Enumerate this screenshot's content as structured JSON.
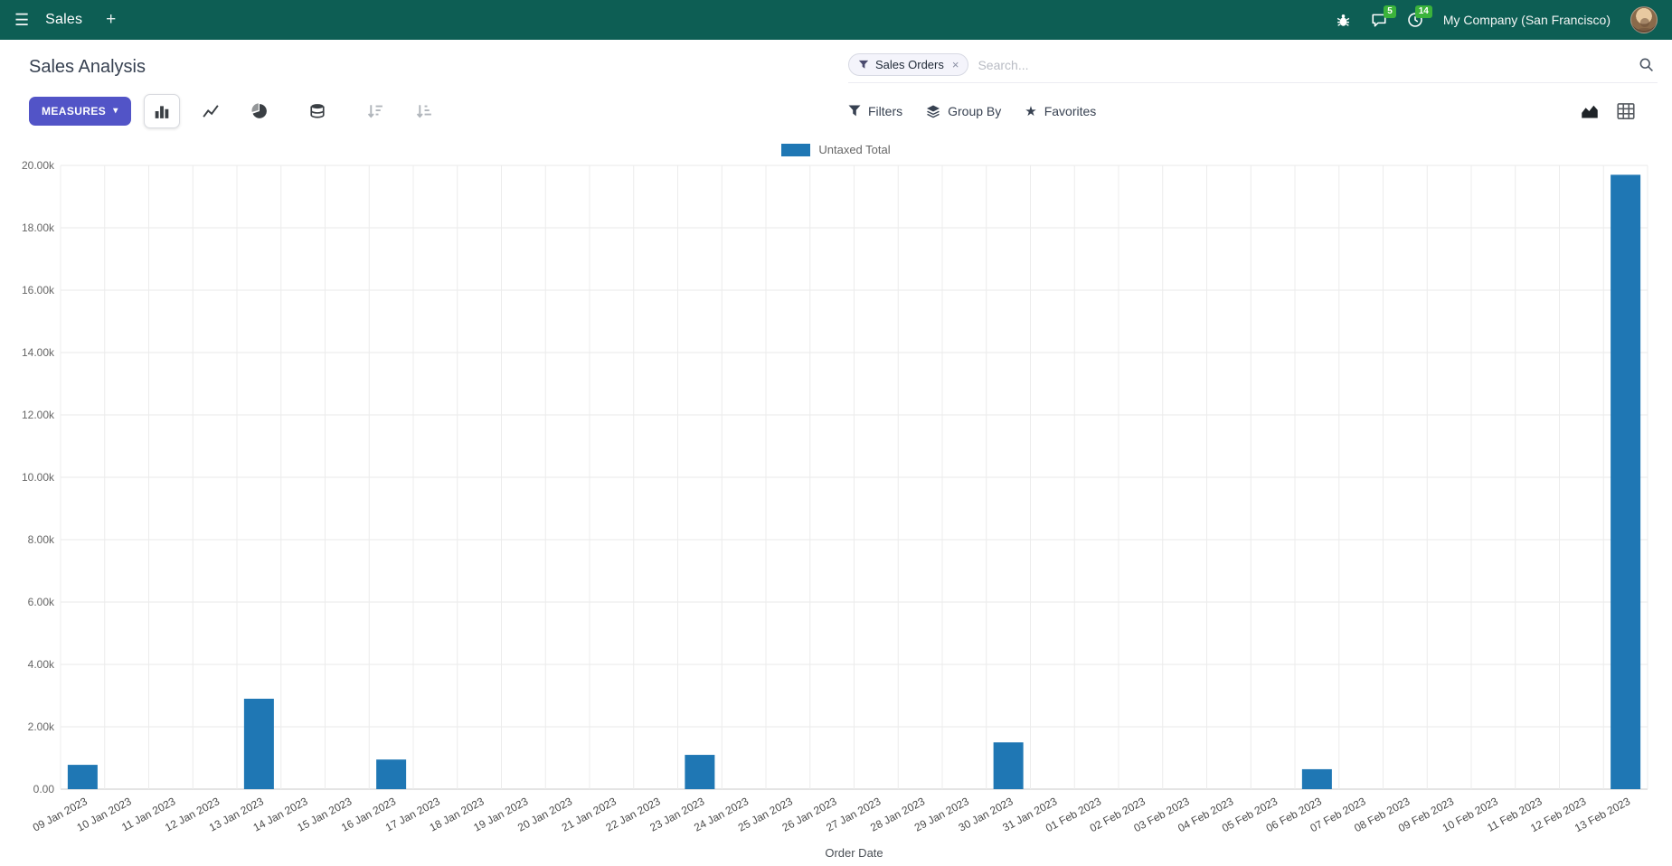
{
  "navbar": {
    "app_name": "Sales",
    "company": "My Company (San Francisco)",
    "badges": {
      "messages": "5",
      "activities": "14"
    }
  },
  "control_panel": {
    "title": "Sales Analysis",
    "measures_button": "MEASURES",
    "search": {
      "facet_label": "Sales Orders",
      "placeholder": "Search..."
    },
    "filters_label": "Filters",
    "group_by_label": "Group By",
    "favorites_label": "Favorites"
  },
  "icons": {
    "menu": "☰",
    "plus": "+",
    "caret_down": "▾",
    "remove": "×",
    "star": "★"
  },
  "chart_data": {
    "type": "bar",
    "title": "",
    "xlabel": "Order Date",
    "ylabel": "",
    "ylim": [
      0,
      20000
    ],
    "y_tick_step": 2000,
    "y_tick_labels": [
      "0.00",
      "2.00k",
      "4.00k",
      "6.00k",
      "8.00k",
      "10.00k",
      "12.00k",
      "14.00k",
      "16.00k",
      "18.00k",
      "20.00k"
    ],
    "grid": true,
    "legend_position": "top",
    "categories": [
      "09 Jan 2023",
      "10 Jan 2023",
      "11 Jan 2023",
      "12 Jan 2023",
      "13 Jan 2023",
      "14 Jan 2023",
      "15 Jan 2023",
      "16 Jan 2023",
      "17 Jan 2023",
      "18 Jan 2023",
      "19 Jan 2023",
      "20 Jan 2023",
      "21 Jan 2023",
      "22 Jan 2023",
      "23 Jan 2023",
      "24 Jan 2023",
      "25 Jan 2023",
      "26 Jan 2023",
      "27 Jan 2023",
      "28 Jan 2023",
      "29 Jan 2023",
      "30 Jan 2023",
      "31 Jan 2023",
      "01 Feb 2023",
      "02 Feb 2023",
      "03 Feb 2023",
      "04 Feb 2023",
      "05 Feb 2023",
      "06 Feb 2023",
      "07 Feb 2023",
      "08 Feb 2023",
      "09 Feb 2023",
      "10 Feb 2023",
      "11 Feb 2023",
      "12 Feb 2023",
      "13 Feb 2023"
    ],
    "series": [
      {
        "name": "Untaxed Total",
        "color": "#1f77b4",
        "values": [
          780,
          0,
          0,
          0,
          2900,
          0,
          0,
          950,
          0,
          0,
          0,
          0,
          0,
          0,
          1100,
          0,
          0,
          0,
          0,
          0,
          0,
          1500,
          0,
          0,
          0,
          0,
          0,
          0,
          640,
          0,
          0,
          0,
          0,
          0,
          0,
          19700
        ]
      }
    ]
  }
}
